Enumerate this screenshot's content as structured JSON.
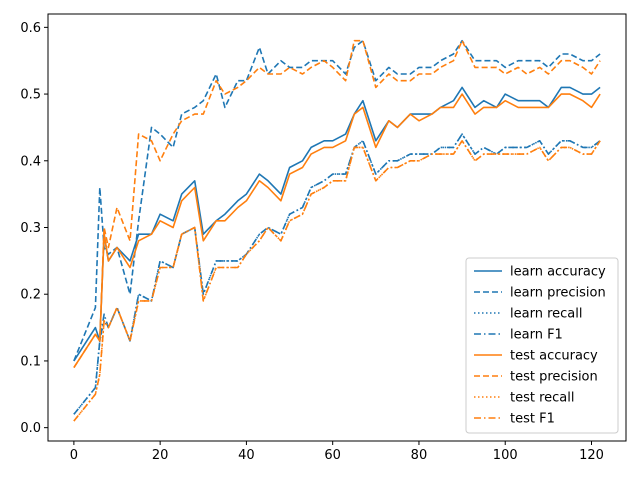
{
  "chart_data": {
    "type": "line",
    "title": "",
    "xlabel": "",
    "ylabel": "",
    "xlim": [
      -6,
      128
    ],
    "ylim": [
      -0.02,
      0.62
    ],
    "xticks": [
      0,
      20,
      40,
      60,
      80,
      100,
      120
    ],
    "yticks": [
      0.0,
      0.1,
      0.2,
      0.3,
      0.4,
      0.5,
      0.6
    ],
    "xtick_labels": [
      "0",
      "20",
      "40",
      "60",
      "80",
      "100",
      "120"
    ],
    "ytick_labels": [
      "0.0",
      "0.1",
      "0.2",
      "0.3",
      "0.4",
      "0.5",
      "0.6"
    ],
    "grid": false,
    "legend_position": "lower-right",
    "x": [
      0,
      5,
      6,
      7,
      8,
      10,
      13,
      15,
      18,
      20,
      23,
      25,
      28,
      30,
      33,
      35,
      38,
      40,
      43,
      45,
      48,
      50,
      53,
      55,
      58,
      60,
      63,
      65,
      67,
      70,
      73,
      75,
      78,
      80,
      83,
      85,
      88,
      90,
      93,
      95,
      98,
      100,
      103,
      105,
      108,
      110,
      113,
      115,
      118,
      120,
      122
    ],
    "series": [
      {
        "name": "learn accuracy",
        "color": "#1f77b4",
        "dash": "solid",
        "values": [
          0.1,
          0.15,
          0.13,
          0.29,
          0.25,
          0.27,
          0.25,
          0.29,
          0.29,
          0.32,
          0.31,
          0.35,
          0.37,
          0.29,
          0.31,
          0.32,
          0.34,
          0.35,
          0.38,
          0.37,
          0.35,
          0.39,
          0.4,
          0.42,
          0.43,
          0.43,
          0.44,
          0.47,
          0.49,
          0.43,
          0.46,
          0.45,
          0.47,
          0.47,
          0.47,
          0.48,
          0.49,
          0.51,
          0.48,
          0.49,
          0.48,
          0.5,
          0.49,
          0.49,
          0.49,
          0.48,
          0.51,
          0.51,
          0.5,
          0.5,
          0.51
        ]
      },
      {
        "name": "learn precision",
        "color": "#1f77b4",
        "dash": "dashed",
        "values": [
          0.1,
          0.18,
          0.36,
          0.27,
          0.26,
          0.27,
          0.2,
          0.31,
          0.45,
          0.44,
          0.42,
          0.47,
          0.48,
          0.49,
          0.53,
          0.48,
          0.52,
          0.52,
          0.57,
          0.53,
          0.55,
          0.54,
          0.54,
          0.55,
          0.55,
          0.55,
          0.53,
          0.57,
          0.58,
          0.52,
          0.54,
          0.53,
          0.53,
          0.54,
          0.54,
          0.55,
          0.56,
          0.58,
          0.55,
          0.55,
          0.55,
          0.54,
          0.55,
          0.55,
          0.55,
          0.54,
          0.56,
          0.56,
          0.55,
          0.55,
          0.56
        ]
      },
      {
        "name": "learn recall",
        "color": "#1f77b4",
        "dash": "dotted",
        "values": [
          0.02,
          0.06,
          0.13,
          0.16,
          0.15,
          0.18,
          0.13,
          0.2,
          0.19,
          0.25,
          0.24,
          0.29,
          0.3,
          0.2,
          0.25,
          0.25,
          0.25,
          0.26,
          0.29,
          0.3,
          0.29,
          0.32,
          0.33,
          0.36,
          0.37,
          0.38,
          0.38,
          0.42,
          0.43,
          0.38,
          0.4,
          0.4,
          0.41,
          0.41,
          0.41,
          0.42,
          0.42,
          0.44,
          0.41,
          0.42,
          0.41,
          0.42,
          0.42,
          0.42,
          0.43,
          0.41,
          0.43,
          0.43,
          0.42,
          0.42,
          0.43
        ]
      },
      {
        "name": "learn F1",
        "color": "#1f77b4",
        "dash": "dashdot",
        "values": [
          0.02,
          0.06,
          0.13,
          0.17,
          0.15,
          0.18,
          0.13,
          0.2,
          0.19,
          0.25,
          0.24,
          0.29,
          0.3,
          0.2,
          0.25,
          0.25,
          0.25,
          0.26,
          0.29,
          0.3,
          0.29,
          0.32,
          0.33,
          0.36,
          0.37,
          0.38,
          0.38,
          0.42,
          0.43,
          0.38,
          0.4,
          0.4,
          0.41,
          0.41,
          0.41,
          0.42,
          0.42,
          0.44,
          0.41,
          0.42,
          0.41,
          0.42,
          0.42,
          0.42,
          0.43,
          0.41,
          0.43,
          0.43,
          0.42,
          0.42,
          0.43
        ]
      },
      {
        "name": "test accuracy",
        "color": "#ff7f0e",
        "dash": "solid",
        "values": [
          0.09,
          0.14,
          0.13,
          0.29,
          0.25,
          0.27,
          0.24,
          0.28,
          0.29,
          0.31,
          0.3,
          0.34,
          0.36,
          0.28,
          0.31,
          0.31,
          0.33,
          0.34,
          0.37,
          0.36,
          0.34,
          0.38,
          0.39,
          0.41,
          0.42,
          0.42,
          0.43,
          0.47,
          0.48,
          0.42,
          0.46,
          0.45,
          0.47,
          0.46,
          0.47,
          0.48,
          0.48,
          0.5,
          0.47,
          0.48,
          0.48,
          0.49,
          0.48,
          0.48,
          0.48,
          0.48,
          0.5,
          0.5,
          0.49,
          0.48,
          0.5
        ]
      },
      {
        "name": "test precision",
        "color": "#ff7f0e",
        "dash": "dashed",
        "values": [
          0.09,
          0.14,
          0.13,
          0.3,
          0.27,
          0.33,
          0.28,
          0.44,
          0.43,
          0.4,
          0.44,
          0.46,
          0.47,
          0.47,
          0.52,
          0.5,
          0.51,
          0.52,
          0.54,
          0.53,
          0.53,
          0.54,
          0.53,
          0.54,
          0.55,
          0.54,
          0.52,
          0.58,
          0.58,
          0.51,
          0.53,
          0.52,
          0.52,
          0.53,
          0.53,
          0.54,
          0.55,
          0.58,
          0.54,
          0.54,
          0.54,
          0.53,
          0.54,
          0.53,
          0.54,
          0.53,
          0.55,
          0.55,
          0.54,
          0.53,
          0.55
        ]
      },
      {
        "name": "test recall",
        "color": "#ff7f0e",
        "dash": "dotted",
        "values": [
          0.01,
          0.05,
          0.08,
          0.16,
          0.15,
          0.18,
          0.13,
          0.19,
          0.19,
          0.24,
          0.24,
          0.29,
          0.3,
          0.19,
          0.24,
          0.24,
          0.24,
          0.26,
          0.28,
          0.3,
          0.28,
          0.31,
          0.32,
          0.35,
          0.36,
          0.37,
          0.37,
          0.42,
          0.42,
          0.37,
          0.39,
          0.39,
          0.4,
          0.4,
          0.41,
          0.41,
          0.41,
          0.43,
          0.4,
          0.41,
          0.41,
          0.41,
          0.41,
          0.41,
          0.42,
          0.4,
          0.42,
          0.42,
          0.41,
          0.41,
          0.43
        ]
      },
      {
        "name": "test F1",
        "color": "#ff7f0e",
        "dash": "dashdot",
        "values": [
          0.01,
          0.05,
          0.08,
          0.16,
          0.15,
          0.18,
          0.13,
          0.19,
          0.19,
          0.24,
          0.24,
          0.29,
          0.3,
          0.19,
          0.24,
          0.24,
          0.24,
          0.26,
          0.28,
          0.3,
          0.28,
          0.31,
          0.32,
          0.35,
          0.36,
          0.37,
          0.37,
          0.42,
          0.42,
          0.37,
          0.39,
          0.39,
          0.4,
          0.4,
          0.41,
          0.41,
          0.41,
          0.43,
          0.4,
          0.41,
          0.41,
          0.41,
          0.41,
          0.41,
          0.42,
          0.4,
          0.42,
          0.42,
          0.41,
          0.41,
          0.43
        ]
      }
    ]
  }
}
